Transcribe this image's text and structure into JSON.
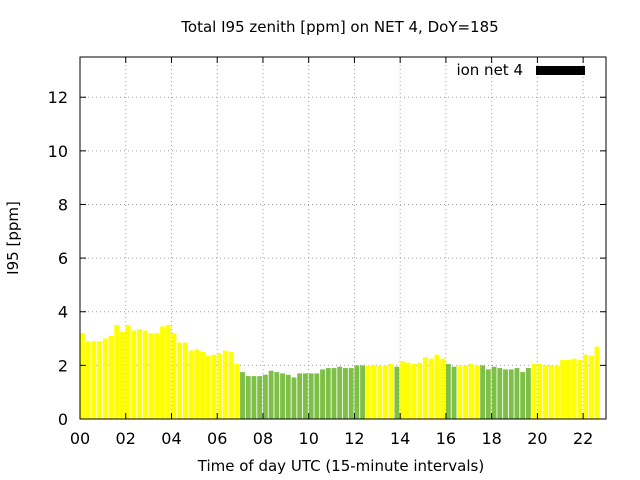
{
  "chart_data": {
    "type": "bar",
    "title": "Total I95 zenith [ppm] on NET 4, DoY=185",
    "xlabel": "Time of day UTC (15-minute intervals)",
    "ylabel": "I95 [ppm]",
    "xlim": [
      0,
      23
    ],
    "ylim": [
      0,
      13.5
    ],
    "x_unit": "hours UTC",
    "x_tick_values": [
      0,
      2,
      4,
      6,
      8,
      10,
      12,
      14,
      16,
      18,
      20,
      22
    ],
    "x_tick_labels": [
      "00",
      "02",
      "04",
      "06",
      "08",
      "10",
      "12",
      "14",
      "16",
      "18",
      "20",
      "22"
    ],
    "y_tick_values": [
      0,
      2,
      4,
      6,
      8,
      10,
      12
    ],
    "y_tick_labels": [
      "0",
      "2",
      "4",
      "6",
      "8",
      "10",
      "12"
    ],
    "grid": true,
    "legend": {
      "position": "top-right",
      "label": "ion net 4",
      "color": "#000000"
    },
    "colors": {
      "yellow": "#ffff00",
      "green": "#7dbf47"
    },
    "series": [
      {
        "values": [
          {
            "x": 0.0,
            "y": 3.2,
            "color": "yellow"
          },
          {
            "x": 0.25,
            "y": 2.9,
            "color": "yellow"
          },
          {
            "x": 0.5,
            "y": 2.9,
            "color": "yellow"
          },
          {
            "x": 0.75,
            "y": 2.9,
            "color": "yellow"
          },
          {
            "x": 1.0,
            "y": 3.0,
            "color": "yellow"
          },
          {
            "x": 1.25,
            "y": 3.1,
            "color": "yellow"
          },
          {
            "x": 1.5,
            "y": 3.5,
            "color": "yellow"
          },
          {
            "x": 1.75,
            "y": 3.25,
            "color": "yellow"
          },
          {
            "x": 2.0,
            "y": 3.5,
            "color": "yellow"
          },
          {
            "x": 2.25,
            "y": 3.3,
            "color": "yellow"
          },
          {
            "x": 2.5,
            "y": 3.35,
            "color": "yellow"
          },
          {
            "x": 2.75,
            "y": 3.3,
            "color": "yellow"
          },
          {
            "x": 3.0,
            "y": 3.2,
            "color": "yellow"
          },
          {
            "x": 3.25,
            "y": 3.2,
            "color": "yellow"
          },
          {
            "x": 3.5,
            "y": 3.45,
            "color": "yellow"
          },
          {
            "x": 3.75,
            "y": 3.5,
            "color": "yellow"
          },
          {
            "x": 4.0,
            "y": 3.2,
            "color": "yellow"
          },
          {
            "x": 4.25,
            "y": 2.85,
            "color": "yellow"
          },
          {
            "x": 4.5,
            "y": 2.85,
            "color": "yellow"
          },
          {
            "x": 4.75,
            "y": 2.55,
            "color": "yellow"
          },
          {
            "x": 5.0,
            "y": 2.6,
            "color": "yellow"
          },
          {
            "x": 5.25,
            "y": 2.5,
            "color": "yellow"
          },
          {
            "x": 5.5,
            "y": 2.35,
            "color": "yellow"
          },
          {
            "x": 5.75,
            "y": 2.4,
            "color": "yellow"
          },
          {
            "x": 6.0,
            "y": 2.45,
            "color": "yellow"
          },
          {
            "x": 6.25,
            "y": 2.55,
            "color": "yellow"
          },
          {
            "x": 6.5,
            "y": 2.5,
            "color": "yellow"
          },
          {
            "x": 6.75,
            "y": 2.05,
            "color": "yellow"
          },
          {
            "x": 7.0,
            "y": 1.75,
            "color": "green"
          },
          {
            "x": 7.25,
            "y": 1.6,
            "color": "green"
          },
          {
            "x": 7.5,
            "y": 1.6,
            "color": "green"
          },
          {
            "x": 7.75,
            "y": 1.6,
            "color": "green"
          },
          {
            "x": 8.0,
            "y": 1.65,
            "color": "green"
          },
          {
            "x": 8.25,
            "y": 1.8,
            "color": "green"
          },
          {
            "x": 8.5,
            "y": 1.75,
            "color": "green"
          },
          {
            "x": 8.75,
            "y": 1.7,
            "color": "green"
          },
          {
            "x": 9.0,
            "y": 1.65,
            "color": "green"
          },
          {
            "x": 9.25,
            "y": 1.55,
            "color": "green"
          },
          {
            "x": 9.5,
            "y": 1.7,
            "color": "green"
          },
          {
            "x": 9.75,
            "y": 1.7,
            "color": "green"
          },
          {
            "x": 10.0,
            "y": 1.7,
            "color": "green"
          },
          {
            "x": 10.25,
            "y": 1.7,
            "color": "green"
          },
          {
            "x": 10.5,
            "y": 1.85,
            "color": "green"
          },
          {
            "x": 10.75,
            "y": 1.9,
            "color": "green"
          },
          {
            "x": 11.0,
            "y": 1.9,
            "color": "green"
          },
          {
            "x": 11.25,
            "y": 1.95,
            "color": "green"
          },
          {
            "x": 11.5,
            "y": 1.9,
            "color": "green"
          },
          {
            "x": 11.75,
            "y": 1.9,
            "color": "green"
          },
          {
            "x": 12.0,
            "y": 2.0,
            "color": "green"
          },
          {
            "x": 12.25,
            "y": 2.0,
            "color": "green"
          },
          {
            "x": 12.5,
            "y": 2.0,
            "color": "yellow"
          },
          {
            "x": 12.75,
            "y": 2.0,
            "color": "yellow"
          },
          {
            "x": 13.0,
            "y": 2.0,
            "color": "yellow"
          },
          {
            "x": 13.25,
            "y": 2.0,
            "color": "yellow"
          },
          {
            "x": 13.5,
            "y": 2.05,
            "color": "yellow"
          },
          {
            "x": 13.75,
            "y": 1.95,
            "color": "green"
          },
          {
            "x": 14.0,
            "y": 2.15,
            "color": "yellow"
          },
          {
            "x": 14.25,
            "y": 2.1,
            "color": "yellow"
          },
          {
            "x": 14.5,
            "y": 2.05,
            "color": "yellow"
          },
          {
            "x": 14.75,
            "y": 2.1,
            "color": "yellow"
          },
          {
            "x": 15.0,
            "y": 2.3,
            "color": "yellow"
          },
          {
            "x": 15.25,
            "y": 2.25,
            "color": "yellow"
          },
          {
            "x": 15.5,
            "y": 2.4,
            "color": "yellow"
          },
          {
            "x": 15.75,
            "y": 2.25,
            "color": "yellow"
          },
          {
            "x": 16.0,
            "y": 2.05,
            "color": "green"
          },
          {
            "x": 16.25,
            "y": 1.95,
            "color": "green"
          },
          {
            "x": 16.5,
            "y": 2.0,
            "color": "yellow"
          },
          {
            "x": 16.75,
            "y": 2.0,
            "color": "yellow"
          },
          {
            "x": 17.0,
            "y": 2.05,
            "color": "yellow"
          },
          {
            "x": 17.25,
            "y": 2.0,
            "color": "yellow"
          },
          {
            "x": 17.5,
            "y": 2.0,
            "color": "green"
          },
          {
            "x": 17.75,
            "y": 1.85,
            "color": "green"
          },
          {
            "x": 18.0,
            "y": 1.95,
            "color": "green"
          },
          {
            "x": 18.25,
            "y": 1.9,
            "color": "green"
          },
          {
            "x": 18.5,
            "y": 1.85,
            "color": "green"
          },
          {
            "x": 18.75,
            "y": 1.85,
            "color": "green"
          },
          {
            "x": 19.0,
            "y": 1.9,
            "color": "green"
          },
          {
            "x": 19.25,
            "y": 1.75,
            "color": "green"
          },
          {
            "x": 19.5,
            "y": 1.9,
            "color": "green"
          },
          {
            "x": 19.75,
            "y": 2.05,
            "color": "yellow"
          },
          {
            "x": 20.0,
            "y": 2.05,
            "color": "yellow"
          },
          {
            "x": 20.25,
            "y": 2.0,
            "color": "yellow"
          },
          {
            "x": 20.5,
            "y": 2.0,
            "color": "yellow"
          },
          {
            "x": 20.75,
            "y": 2.0,
            "color": "yellow"
          },
          {
            "x": 21.0,
            "y": 2.2,
            "color": "yellow"
          },
          {
            "x": 21.25,
            "y": 2.2,
            "color": "yellow"
          },
          {
            "x": 21.5,
            "y": 2.25,
            "color": "yellow"
          },
          {
            "x": 21.75,
            "y": 2.2,
            "color": "yellow"
          },
          {
            "x": 22.0,
            "y": 2.4,
            "color": "yellow"
          },
          {
            "x": 22.25,
            "y": 2.35,
            "color": "yellow"
          },
          {
            "x": 22.5,
            "y": 2.7,
            "color": "yellow"
          }
        ]
      }
    ]
  }
}
